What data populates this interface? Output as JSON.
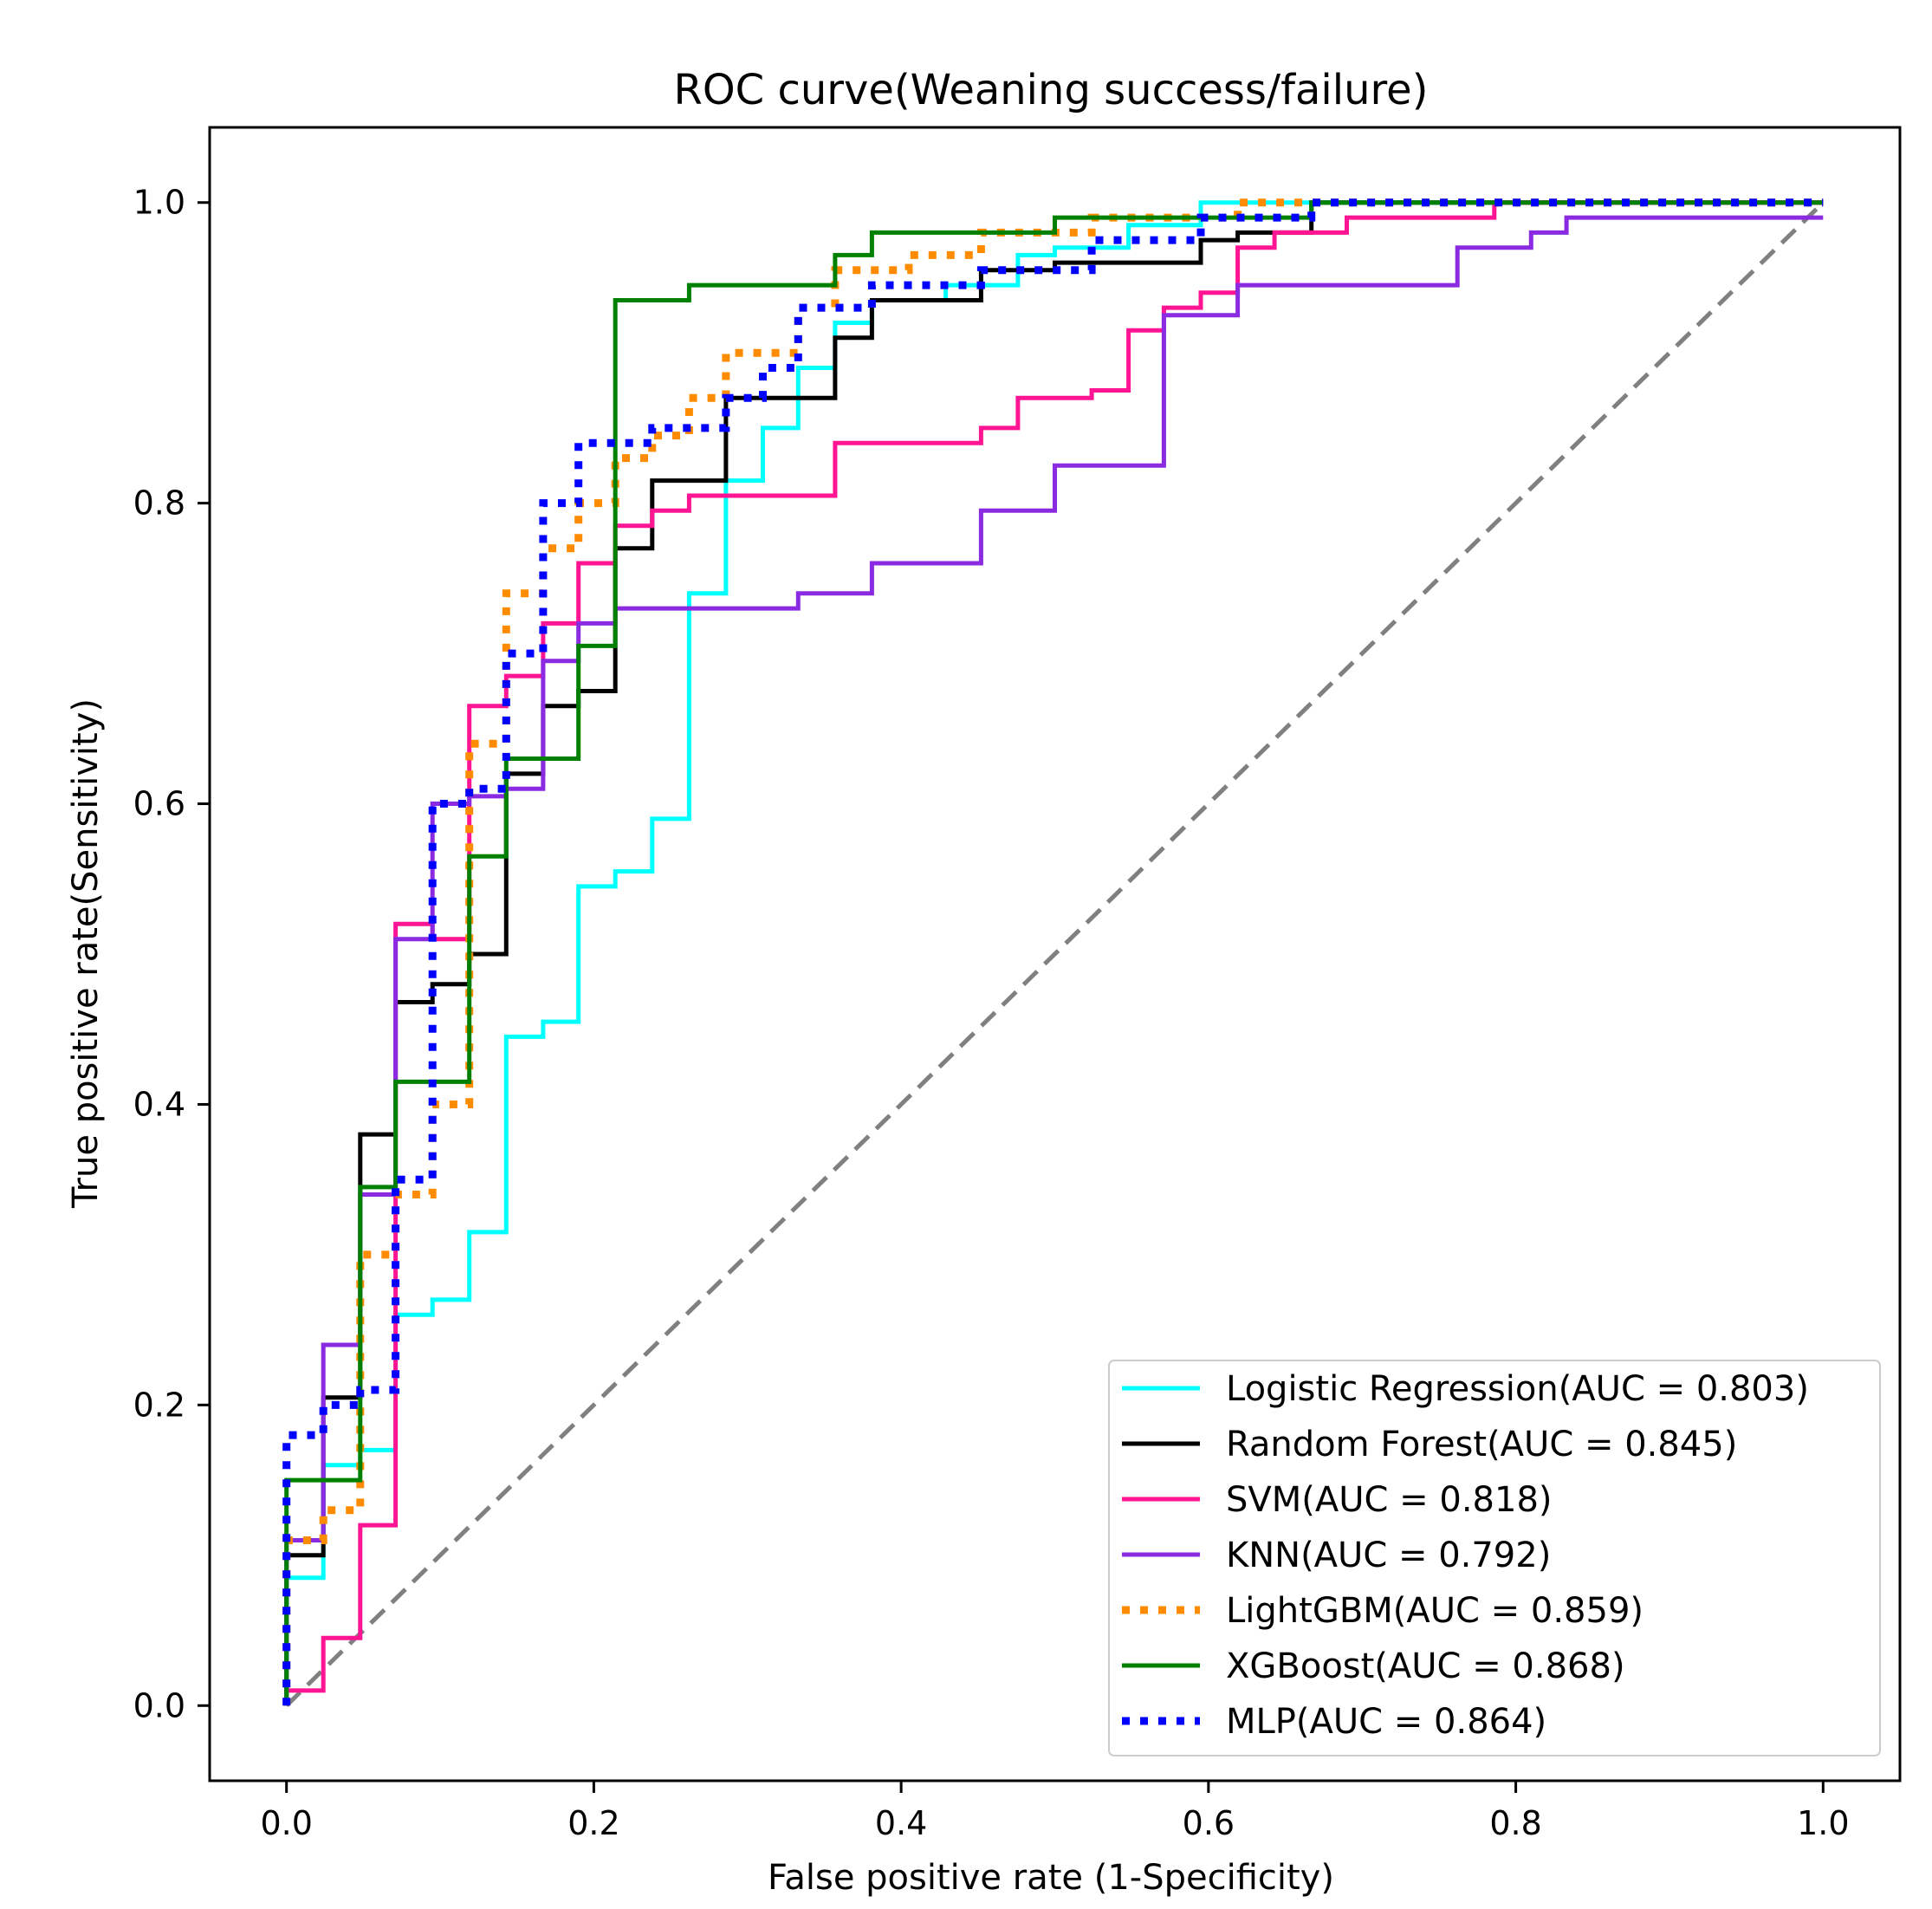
{
  "chart_data": {
    "type": "line",
    "title": "ROC curve(Weaning success/failure)",
    "xlabel": "False positive rate (1-Specificity)",
    "ylabel": "True positive rate(Sensitivity)",
    "xlim": [
      -0.05,
      1.05
    ],
    "ylim": [
      -0.05,
      1.05
    ],
    "xticks": [
      0.0,
      0.2,
      0.4,
      0.6,
      0.8,
      1.0
    ],
    "yticks": [
      0.0,
      0.2,
      0.4,
      0.6,
      0.8,
      1.0
    ],
    "xtick_labels": [
      "0.0",
      "0.2",
      "0.4",
      "0.6",
      "0.8",
      "1.0"
    ],
    "ytick_labels": [
      "0.0",
      "0.2",
      "0.4",
      "0.6",
      "0.8",
      "1.0"
    ],
    "legend_position": "lower-right",
    "reference_line": {
      "x": [
        0,
        1
      ],
      "y": [
        0,
        1
      ],
      "color": "#808080",
      "style": "dashed"
    },
    "series": [
      {
        "name": "Logistic Regression(AUC = 0.803)",
        "color": "#00ffff",
        "style": "solid",
        "x": [
          0,
          0,
          0.024,
          0.024,
          0.048,
          0.048,
          0.071,
          0.071,
          0.095,
          0.095,
          0.119,
          0.119,
          0.143,
          0.143,
          0.167,
          0.167,
          0.19,
          0.19,
          0.214,
          0.214,
          0.238,
          0.238,
          0.262,
          0.262,
          0.286,
          0.286,
          0.31,
          0.31,
          0.333,
          0.333,
          0.357,
          0.357,
          0.381,
          0.381,
          0.429,
          0.429,
          0.476,
          0.476,
          0.5,
          0.5,
          0.548,
          0.548,
          0.595,
          0.595,
          1.0
        ],
        "y": [
          0,
          0.085,
          0.085,
          0.16,
          0.16,
          0.17,
          0.17,
          0.26,
          0.26,
          0.27,
          0.27,
          0.315,
          0.315,
          0.445,
          0.445,
          0.455,
          0.455,
          0.545,
          0.545,
          0.555,
          0.555,
          0.59,
          0.59,
          0.74,
          0.74,
          0.815,
          0.815,
          0.85,
          0.85,
          0.89,
          0.89,
          0.92,
          0.92,
          0.935,
          0.935,
          0.945,
          0.945,
          0.965,
          0.965,
          0.97,
          0.97,
          0.985,
          0.985,
          1.0,
          1.0
        ]
      },
      {
        "name": "Random Forest(AUC = 0.845)",
        "color": "#000000",
        "style": "solid",
        "x": [
          0,
          0,
          0.024,
          0.024,
          0.048,
          0.048,
          0.071,
          0.071,
          0.095,
          0.095,
          0.119,
          0.119,
          0.143,
          0.143,
          0.167,
          0.167,
          0.19,
          0.19,
          0.214,
          0.214,
          0.238,
          0.238,
          0.286,
          0.286,
          0.357,
          0.357,
          0.381,
          0.381,
          0.452,
          0.452,
          0.5,
          0.5,
          0.595,
          0.595,
          0.619,
          0.619,
          0.667,
          0.667,
          1.0
        ],
        "y": [
          0,
          0.1,
          0.1,
          0.205,
          0.205,
          0.38,
          0.38,
          0.468,
          0.468,
          0.48,
          0.48,
          0.5,
          0.5,
          0.62,
          0.62,
          0.665,
          0.665,
          0.675,
          0.675,
          0.77,
          0.77,
          0.815,
          0.815,
          0.87,
          0.87,
          0.91,
          0.91,
          0.935,
          0.935,
          0.955,
          0.955,
          0.96,
          0.96,
          0.975,
          0.975,
          0.98,
          0.98,
          1.0,
          1.0
        ]
      },
      {
        "name": "SVM(AUC = 0.818)",
        "color": "#ff1493",
        "style": "solid",
        "x": [
          0,
          0.024,
          0.024,
          0.048,
          0.048,
          0.071,
          0.071,
          0.095,
          0.095,
          0.119,
          0.119,
          0.143,
          0.143,
          0.167,
          0.167,
          0.19,
          0.19,
          0.214,
          0.214,
          0.238,
          0.238,
          0.262,
          0.262,
          0.357,
          0.357,
          0.452,
          0.452,
          0.476,
          0.476,
          0.524,
          0.524,
          0.548,
          0.548,
          0.571,
          0.571,
          0.595,
          0.595,
          0.619,
          0.619,
          0.643,
          0.643,
          0.69,
          0.69,
          0.786,
          0.786,
          1.0
        ],
        "y": [
          0.01,
          0.01,
          0.045,
          0.045,
          0.12,
          0.12,
          0.52,
          0.52,
          0.51,
          0.51,
          0.665,
          0.665,
          0.685,
          0.685,
          0.72,
          0.72,
          0.76,
          0.76,
          0.785,
          0.785,
          0.795,
          0.795,
          0.805,
          0.805,
          0.84,
          0.84,
          0.85,
          0.85,
          0.87,
          0.87,
          0.875,
          0.875,
          0.915,
          0.915,
          0.93,
          0.93,
          0.94,
          0.94,
          0.97,
          0.97,
          0.98,
          0.98,
          0.99,
          0.99,
          1.0,
          1.0
        ]
      },
      {
        "name": "KNN(AUC = 0.792)",
        "color": "#8a2be2",
        "style": "solid",
        "x": [
          0,
          0,
          0.024,
          0.024,
          0.048,
          0.048,
          0.071,
          0.071,
          0.095,
          0.095,
          0.119,
          0.119,
          0.143,
          0.143,
          0.167,
          0.167,
          0.19,
          0.19,
          0.214,
          0.214,
          0.333,
          0.333,
          0.381,
          0.381,
          0.452,
          0.452,
          0.5,
          0.5,
          0.571,
          0.571,
          0.619,
          0.619,
          0.762,
          0.762,
          0.81,
          0.81,
          0.833,
          0.833,
          1.0
        ],
        "y": [
          0,
          0.11,
          0.11,
          0.24,
          0.24,
          0.34,
          0.34,
          0.51,
          0.51,
          0.6,
          0.6,
          0.605,
          0.605,
          0.61,
          0.61,
          0.695,
          0.695,
          0.72,
          0.72,
          0.73,
          0.73,
          0.74,
          0.74,
          0.76,
          0.76,
          0.795,
          0.795,
          0.825,
          0.825,
          0.925,
          0.925,
          0.945,
          0.945,
          0.97,
          0.97,
          0.98,
          0.98,
          0.99,
          0.99
        ]
      },
      {
        "name": "LightGBM(AUC = 0.859)",
        "color": "#ff8c00",
        "style": "dotted",
        "x": [
          0,
          0,
          0.024,
          0.024,
          0.048,
          0.048,
          0.071,
          0.071,
          0.095,
          0.095,
          0.119,
          0.119,
          0.143,
          0.143,
          0.167,
          0.167,
          0.19,
          0.19,
          0.214,
          0.214,
          0.238,
          0.238,
          0.262,
          0.262,
          0.286,
          0.286,
          0.333,
          0.333,
          0.357,
          0.357,
          0.405,
          0.405,
          0.452,
          0.452,
          0.524,
          0.524,
          0.619,
          0.619,
          1.0
        ],
        "y": [
          0,
          0.11,
          0.11,
          0.13,
          0.13,
          0.3,
          0.3,
          0.34,
          0.34,
          0.4,
          0.4,
          0.64,
          0.64,
          0.74,
          0.74,
          0.77,
          0.77,
          0.8,
          0.8,
          0.83,
          0.83,
          0.845,
          0.845,
          0.87,
          0.87,
          0.9,
          0.9,
          0.93,
          0.93,
          0.955,
          0.955,
          0.965,
          0.965,
          0.98,
          0.98,
          0.99,
          0.99,
          1.0,
          1.0
        ]
      },
      {
        "name": "XGBoost(AUC = 0.868)",
        "color": "#008000",
        "style": "solid",
        "x": [
          0,
          0,
          0.048,
          0.048,
          0.071,
          0.071,
          0.119,
          0.119,
          0.143,
          0.143,
          0.19,
          0.19,
          0.214,
          0.214,
          0.262,
          0.262,
          0.357,
          0.357,
          0.381,
          0.381,
          0.5,
          0.5,
          0.667,
          0.667,
          1.0
        ],
        "y": [
          0,
          0.15,
          0.15,
          0.345,
          0.345,
          0.415,
          0.415,
          0.565,
          0.565,
          0.63,
          0.63,
          0.705,
          0.705,
          0.935,
          0.935,
          0.945,
          0.945,
          0.965,
          0.965,
          0.98,
          0.98,
          0.99,
          0.99,
          1.0,
          1.0
        ]
      },
      {
        "name": "MLP(AUC = 0.864)",
        "color": "#0000ff",
        "style": "dotted",
        "x": [
          0,
          0,
          0.024,
          0.024,
          0.048,
          0.048,
          0.071,
          0.071,
          0.095,
          0.095,
          0.119,
          0.119,
          0.143,
          0.143,
          0.167,
          0.167,
          0.19,
          0.19,
          0.238,
          0.238,
          0.286,
          0.286,
          0.31,
          0.31,
          0.333,
          0.333,
          0.381,
          0.381,
          0.452,
          0.452,
          0.524,
          0.524,
          0.595,
          0.595,
          0.667,
          0.667,
          1.0
        ],
        "y": [
          0,
          0.18,
          0.18,
          0.2,
          0.2,
          0.21,
          0.21,
          0.35,
          0.35,
          0.6,
          0.6,
          0.61,
          0.61,
          0.7,
          0.7,
          0.8,
          0.8,
          0.84,
          0.84,
          0.85,
          0.85,
          0.87,
          0.87,
          0.89,
          0.89,
          0.93,
          0.93,
          0.945,
          0.945,
          0.955,
          0.955,
          0.975,
          0.975,
          0.99,
          0.99,
          1.0,
          1.0
        ]
      }
    ]
  }
}
